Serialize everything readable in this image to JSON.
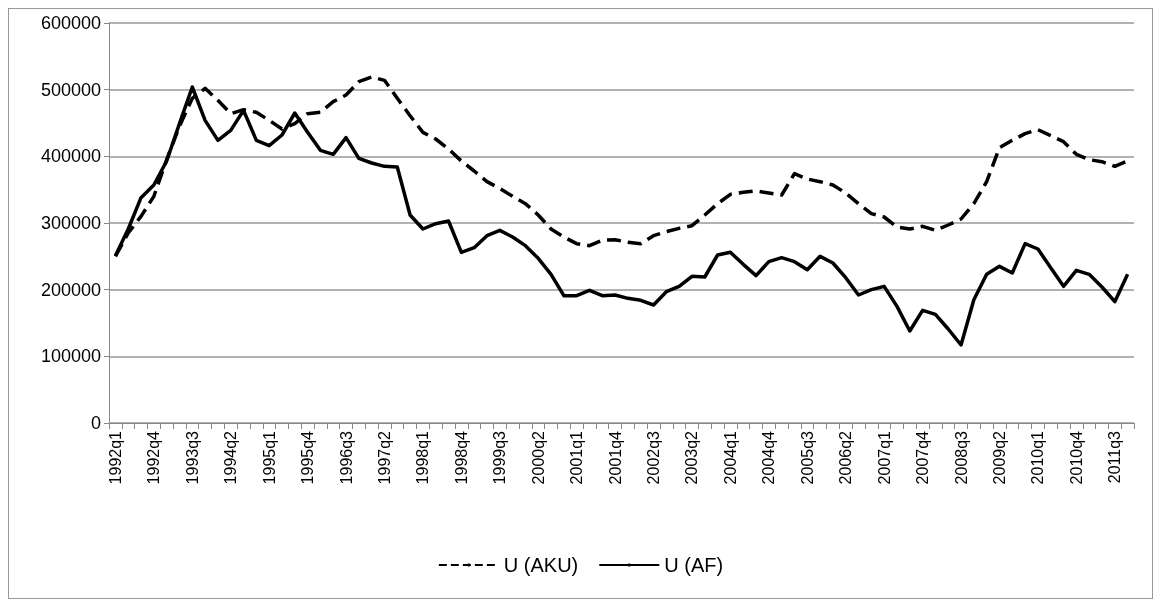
{
  "chart_data": {
    "type": "line",
    "categories": [
      "1992q1",
      null,
      null,
      "1992q4",
      null,
      null,
      "1993q3",
      null,
      null,
      "1994q2",
      null,
      null,
      "1995q1",
      null,
      null,
      "1995q4",
      null,
      null,
      "1996q3",
      null,
      null,
      "1997q2",
      null,
      null,
      "1998q1",
      null,
      null,
      "1998q4",
      null,
      null,
      "1999q3",
      null,
      null,
      "2000q2",
      null,
      null,
      "2001q1",
      null,
      null,
      "2001q4",
      null,
      null,
      "2002q3",
      null,
      null,
      "2003q2",
      null,
      null,
      "2004q1",
      null,
      null,
      "2004q4",
      null,
      null,
      "2005q3",
      null,
      null,
      "2006q2",
      null,
      null,
      "2007q1",
      null,
      null,
      "2007q4",
      null,
      null,
      "2008q3",
      null,
      null,
      "2009q2",
      null,
      null,
      "2010q1",
      null,
      null,
      "2010q4",
      null,
      null,
      "2011q3",
      null
    ],
    "series": [
      {
        "name": "U (AKU)",
        "color": "#000000",
        "line_style": "dashed",
        "values": [
          250000,
          285000,
          310000,
          340000,
          395000,
          445000,
          487000,
          502000,
          484000,
          464000,
          470000,
          466000,
          454000,
          441000,
          449000,
          464000,
          466000,
          482000,
          492000,
          512000,
          519000,
          514000,
          487000,
          461000,
          436000,
          426000,
          411000,
          393000,
          378000,
          362000,
          352000,
          340000,
          329000,
          312000,
          291000,
          279000,
          269000,
          266000,
          274000,
          275000,
          271000,
          269000,
          281000,
          287000,
          292000,
          296000,
          312000,
          329000,
          343000,
          346000,
          348000,
          345000,
          342000,
          374000,
          366000,
          362000,
          357000,
          345000,
          329000,
          314000,
          309000,
          294000,
          291000,
          295000,
          289000,
          297000,
          306000,
          329000,
          362000,
          413000,
          424000,
          434000,
          440000,
          431000,
          422000,
          403000,
          395000,
          392000,
          385000,
          393000
        ]
      },
      {
        "name": "U (AF)",
        "color": "#000000",
        "line_style": "solid",
        "values": [
          251000,
          291000,
          338000,
          357000,
          393000,
          449000,
          504000,
          454000,
          424000,
          439000,
          469000,
          424000,
          416000,
          432000,
          465000,
          436000,
          409000,
          403000,
          428000,
          397000,
          390000,
          385000,
          384000,
          312000,
          291000,
          299000,
          303000,
          256000,
          263000,
          281000,
          289000,
          279000,
          266000,
          247000,
          223000,
          191000,
          191000,
          199000,
          191000,
          192000,
          187000,
          184000,
          177000,
          197000,
          205000,
          220000,
          219000,
          252000,
          256000,
          238000,
          221000,
          242000,
          248000,
          242000,
          230000,
          250000,
          240000,
          218000,
          192000,
          200000,
          205000,
          175000,
          138000,
          169000,
          163000,
          141000,
          117000,
          185000,
          223000,
          235000,
          225000,
          269000,
          261000,
          233000,
          205000,
          229000,
          223000,
          204000,
          182000,
          223000
        ]
      }
    ],
    "ylim": [
      0,
      600000
    ],
    "yticks": [
      0,
      100000,
      200000,
      300000,
      400000,
      500000,
      600000
    ],
    "grid": "y",
    "legend": "bottom",
    "marker": "none"
  }
}
